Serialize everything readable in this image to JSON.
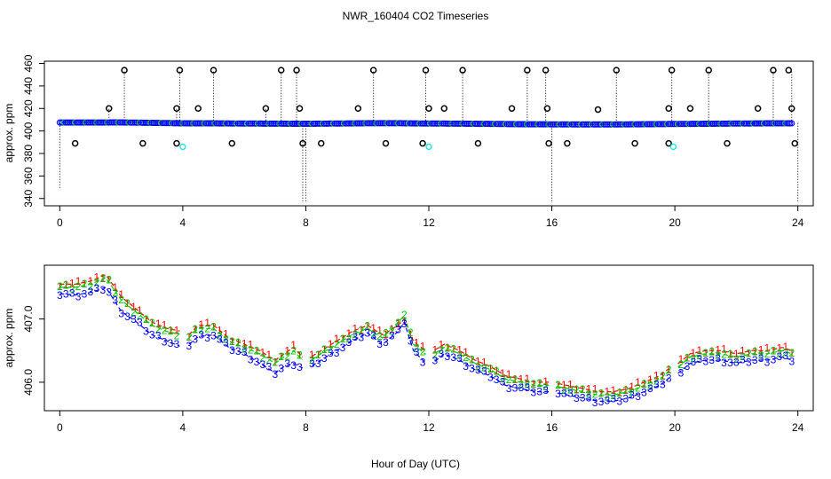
{
  "figure": {
    "title": "NWR_160404  CO2 Timeseries",
    "xlabel": "Hour of Day (UTC)"
  },
  "chart_data": [
    {
      "type": "scatter",
      "name": "raw-timeseries",
      "title": "NWR_160404  CO2 Timeseries",
      "xlabel": "",
      "ylabel": "approx. ppm",
      "xlim": [
        -0.5,
        24.5
      ],
      "ylim": [
        333.5,
        462
      ],
      "xticks": [
        "0",
        "4",
        "8",
        "12",
        "16",
        "20",
        "24"
      ],
      "yticks": [
        "340",
        "360",
        "380",
        "400",
        "420",
        "440",
        "460"
      ],
      "baseline": {
        "color": "#0000ff",
        "x": [
          0.0,
          1.0,
          2.0,
          3.0,
          4.0,
          5.0,
          6.0,
          7.0,
          8.0,
          9.0,
          10.0,
          11.0,
          12.0,
          13.0,
          14.0,
          15.0,
          16.0,
          17.0,
          18.0,
          19.0,
          20.0,
          21.0,
          22.0,
          23.0,
          23.8
        ],
        "y": [
          407.5,
          407.5,
          407.6,
          407.2,
          406.8,
          406.8,
          406.6,
          406.5,
          406.4,
          406.6,
          406.9,
          406.9,
          406.6,
          406.5,
          406.3,
          406.0,
          405.9,
          405.8,
          405.8,
          406.0,
          406.2,
          406.4,
          406.6,
          406.8,
          406.8
        ]
      },
      "high_outliers": {
        "color": "#000000",
        "x": [
          1.6,
          2.1,
          3.8,
          3.9,
          4.5,
          5.0,
          6.7,
          7.2,
          7.7,
          7.8,
          9.7,
          10.2,
          11.9,
          12.0,
          12.5,
          13.1,
          14.7,
          15.2,
          15.8,
          15.85,
          17.5,
          18.1,
          19.8,
          19.9,
          20.5,
          21.1,
          22.7,
          23.2,
          23.7,
          23.8
        ],
        "y": [
          420,
          454,
          420,
          454,
          420,
          454,
          420,
          454,
          454,
          420,
          420,
          454,
          454,
          420,
          420,
          454,
          420,
          454,
          454,
          420,
          419,
          454,
          420,
          454,
          420,
          454,
          420,
          454,
          454,
          420
        ]
      },
      "low_outliers": {
        "color": "#000000",
        "x": [
          0.5,
          2.7,
          3.8,
          5.6,
          7.9,
          8.5,
          10.6,
          11.8,
          13.6,
          15.9,
          16.5,
          18.7,
          19.8,
          21.7,
          23.9
        ],
        "y": [
          389,
          389,
          389,
          389,
          389,
          389,
          389,
          389,
          389,
          389,
          389,
          389,
          389,
          389,
          389
        ]
      },
      "cyan_points": {
        "color": "#00e5e5",
        "x": [
          4.0,
          12.0,
          19.95
        ],
        "y": [
          386,
          386,
          386
        ]
      },
      "dotted_spikes": {
        "color": "#000000",
        "x": [
          0.0,
          1.6,
          2.1,
          3.8,
          3.9,
          5.0,
          6.7,
          7.2,
          7.7,
          7.9,
          8.0,
          10.2,
          11.9,
          13.1,
          15.2,
          15.8,
          16.0,
          18.1,
          19.9,
          21.1,
          23.2,
          23.8,
          24.0
        ],
        "y1": [
          407,
          407,
          407,
          407,
          407,
          407,
          407,
          407,
          407,
          407,
          407,
          407,
          407,
          407,
          407,
          407,
          407,
          407,
          407,
          407,
          407,
          407,
          407
        ],
        "y2": [
          348,
          420,
          454,
          420,
          454,
          454,
          420,
          454,
          454,
          336,
          336,
          454,
          454,
          454,
          454,
          454,
          336,
          454,
          454,
          454,
          454,
          454,
          336
        ]
      }
    },
    {
      "type": "line",
      "name": "zoomed-timeseries",
      "xlabel": "Hour of Day (UTC)",
      "ylabel": "approx. ppm",
      "xlim": [
        -0.5,
        24.5
      ],
      "ylim": [
        405.55,
        407.85
      ],
      "xticks": [
        "0",
        "4",
        "8",
        "12",
        "16",
        "20",
        "24"
      ],
      "yticks": [
        "406.0",
        "407.0"
      ],
      "gaps": [
        [
          4.0,
          4.2
        ],
        [
          7.9,
          8.1
        ],
        [
          11.9,
          12.1
        ],
        [
          15.9,
          16.1
        ],
        [
          19.9,
          20.1
        ]
      ],
      "x": [
        0.0,
        0.5,
        1.0,
        1.5,
        2.0,
        2.5,
        3.0,
        3.5,
        4.0,
        4.2,
        4.5,
        5.0,
        5.5,
        6.0,
        6.5,
        7.0,
        7.3,
        7.6,
        8.0,
        8.5,
        9.0,
        9.5,
        10.0,
        10.5,
        11.0,
        11.2,
        11.5,
        12.0,
        12.5,
        13.0,
        13.5,
        14.0,
        14.5,
        15.0,
        15.5,
        15.9,
        16.0,
        16.5,
        17.0,
        17.5,
        18.0,
        18.5,
        19.0,
        19.5,
        19.9,
        20.0,
        20.5,
        21.0,
        21.5,
        22.0,
        22.5,
        23.0,
        23.5,
        23.8
      ],
      "series": [
        {
          "name": "1",
          "color": "#ff0000",
          "values": [
            407.55,
            407.55,
            407.6,
            407.7,
            407.35,
            407.15,
            406.95,
            406.85,
            406.8,
            406.75,
            406.9,
            406.9,
            406.7,
            406.6,
            406.5,
            406.35,
            406.45,
            406.55,
            406.35,
            406.5,
            406.65,
            406.8,
            406.9,
            406.75,
            406.9,
            407.0,
            406.65,
            406.45,
            406.6,
            406.5,
            406.35,
            406.25,
            406.1,
            406.05,
            406.0,
            406.0,
            406.0,
            405.95,
            405.9,
            405.85,
            405.85,
            405.9,
            406.0,
            406.1,
            406.25,
            406.25,
            406.45,
            406.5,
            406.5,
            406.45,
            406.5,
            406.5,
            406.55,
            406.5
          ]
        },
        {
          "name": "2",
          "color": "#00c800",
          "values": [
            407.5,
            407.5,
            407.55,
            407.65,
            407.3,
            407.1,
            406.9,
            406.8,
            406.75,
            406.7,
            406.85,
            406.85,
            406.65,
            406.55,
            406.45,
            406.3,
            406.4,
            406.5,
            406.3,
            406.45,
            406.6,
            406.75,
            406.85,
            406.7,
            406.95,
            407.05,
            406.6,
            406.4,
            406.55,
            406.45,
            406.3,
            406.2,
            406.05,
            406.0,
            405.95,
            405.95,
            405.95,
            405.9,
            405.85,
            405.8,
            405.8,
            405.85,
            405.95,
            406.05,
            406.2,
            406.2,
            406.4,
            406.45,
            406.45,
            406.4,
            406.45,
            406.45,
            406.5,
            406.45
          ]
        },
        {
          "name": "3",
          "color": "#0000ff",
          "values": [
            407.4,
            407.38,
            407.42,
            407.5,
            407.12,
            406.95,
            406.75,
            406.65,
            406.55,
            406.6,
            406.72,
            406.75,
            406.55,
            406.45,
            406.3,
            406.15,
            406.25,
            406.3,
            406.2,
            406.35,
            406.5,
            406.65,
            406.78,
            406.6,
            406.8,
            406.95,
            406.5,
            406.25,
            406.45,
            406.35,
            406.2,
            406.1,
            405.95,
            405.9,
            405.85,
            405.85,
            405.85,
            405.8,
            405.75,
            405.7,
            405.7,
            405.75,
            405.85,
            405.95,
            406.1,
            406.1,
            406.3,
            406.35,
            406.35,
            406.3,
            406.35,
            406.35,
            406.4,
            406.35
          ]
        }
      ]
    }
  ]
}
